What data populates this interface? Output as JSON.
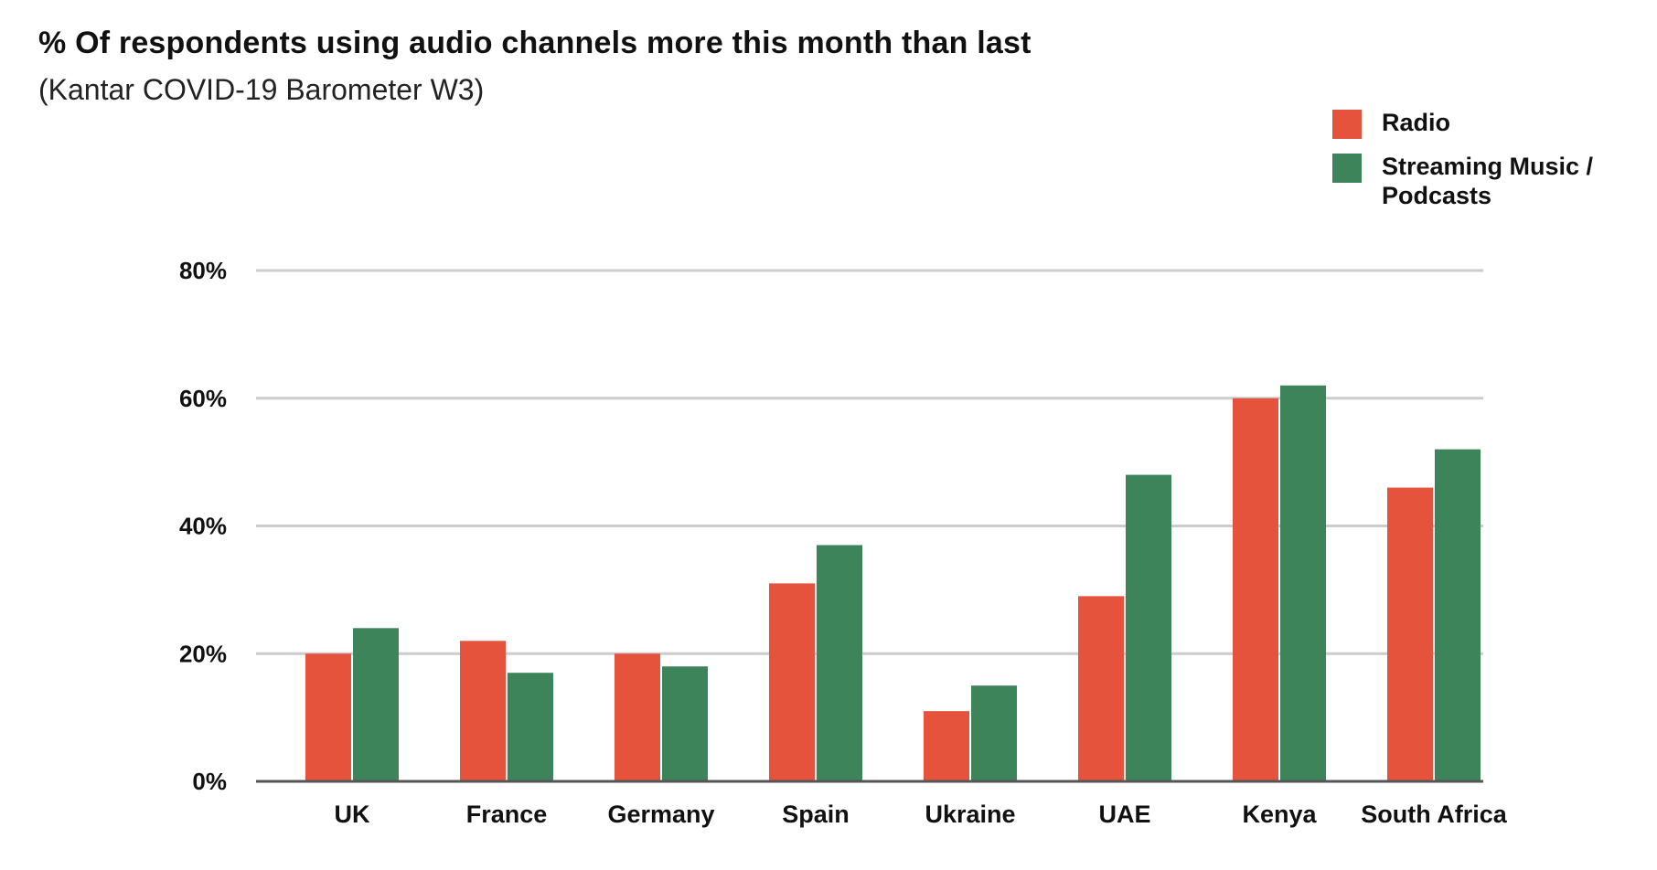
{
  "title": "% Of respondents using audio channels more this month than last",
  "subtitle": "(Kantar COVID-19 Barometer W3)",
  "colors": {
    "radio": "#e5533d",
    "streaming": "#3d845b",
    "grid": "#cccccc",
    "axis": "#555555"
  },
  "chart_data": {
    "type": "bar",
    "title": "% Of respondents using audio channels more this month than last",
    "subtitle": "(Kantar COVID-19 Barometer W3)",
    "xlabel": "",
    "ylabel": "",
    "ylim": [
      0,
      80
    ],
    "yticks": [
      0,
      20,
      40,
      60,
      80
    ],
    "ytick_labels": [
      "0%",
      "20%",
      "40%",
      "60%",
      "80%"
    ],
    "grid": true,
    "legend_position": "top-right",
    "categories": [
      "UK",
      "France",
      "Germany",
      "Spain",
      "Ukraine",
      "UAE",
      "Kenya",
      "South Africa"
    ],
    "series": [
      {
        "name": "Radio",
        "color_key": "radio",
        "values": [
          20,
          22,
          20,
          31,
          11,
          29,
          60,
          46
        ]
      },
      {
        "name": "Streaming Music / Podcasts",
        "color_key": "streaming",
        "values": [
          24,
          17,
          18,
          37,
          15,
          48,
          62,
          52
        ]
      }
    ]
  }
}
